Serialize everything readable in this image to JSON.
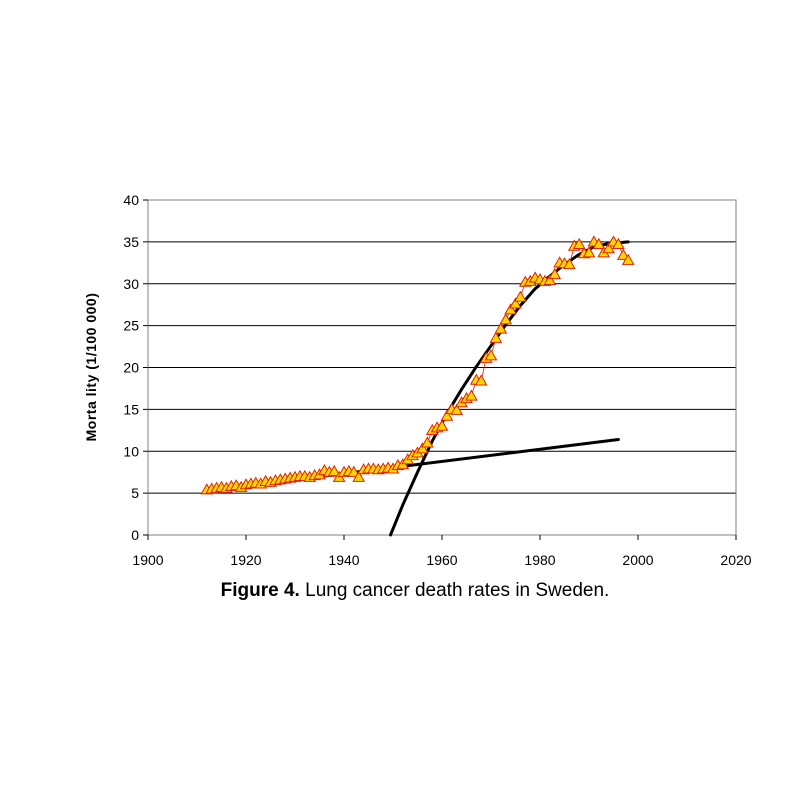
{
  "caption": {
    "prefix": "Figure 4.",
    "text": "Lung cancer death rates in Sweden."
  },
  "chart_data": {
    "type": "scatter",
    "ylabel": "Morta lity (1/100 000)",
    "xlabel": "",
    "xlim": [
      1900,
      2020
    ],
    "ylim": [
      0,
      40
    ],
    "x_ticks": [
      1900,
      1920,
      1940,
      1960,
      1980,
      2000,
      2020
    ],
    "y_ticks": [
      0,
      5,
      10,
      15,
      20,
      25,
      30,
      35,
      40
    ],
    "grid": "horizontal",
    "marker": "triangle",
    "colors": {
      "marker_fill": "#ffd700",
      "marker_edge": "#e02000",
      "connector": "#e02000",
      "fit_line": "#000000",
      "gridline": "#000000"
    },
    "series": [
      {
        "x": [
          1912,
          1913,
          1914,
          1915,
          1916,
          1917,
          1918,
          1919,
          1920,
          1921,
          1922,
          1923,
          1924,
          1925,
          1926,
          1927,
          1928,
          1929,
          1930,
          1931,
          1932,
          1933,
          1934,
          1935,
          1936,
          1937,
          1938,
          1939,
          1940,
          1941,
          1942,
          1943,
          1944,
          1945,
          1946,
          1947,
          1948,
          1949,
          1950,
          1951,
          1952,
          1953,
          1954,
          1955,
          1956,
          1957,
          1958,
          1959,
          1960,
          1961,
          1962,
          1963,
          1964,
          1965,
          1966,
          1967,
          1968,
          1969,
          1970,
          1971,
          1972,
          1973,
          1974,
          1975,
          1976,
          1977,
          1978,
          1979,
          1980,
          1981,
          1982,
          1983,
          1984,
          1985,
          1986,
          1987,
          1988,
          1989,
          1990,
          1991,
          1992,
          1993,
          1994,
          1995,
          1996,
          1997,
          1998
        ],
        "y": [
          5.4,
          5.5,
          5.6,
          5.7,
          5.6,
          5.8,
          5.9,
          5.7,
          6.0,
          6.1,
          6.2,
          6.1,
          6.4,
          6.3,
          6.5,
          6.6,
          6.7,
          6.8,
          6.9,
          7.0,
          7.0,
          6.9,
          7.1,
          7.2,
          7.7,
          7.5,
          7.6,
          6.9,
          7.5,
          7.6,
          7.5,
          6.9,
          7.8,
          7.9,
          7.9,
          7.8,
          7.9,
          8.0,
          7.9,
          8.3,
          8.4,
          9.0,
          9.5,
          9.8,
          10.3,
          11.0,
          12.5,
          12.8,
          13.0,
          14.2,
          15.0,
          14.9,
          15.8,
          16.3,
          16.6,
          18.5,
          18.4,
          21.1,
          21.4,
          23.5,
          24.6,
          25.7,
          26.9,
          27.6,
          28.4,
          30.2,
          30.3,
          30.7,
          30.5,
          30.3,
          30.4,
          31.1,
          32.5,
          32.4,
          32.3,
          34.5,
          34.7,
          33.6,
          33.7,
          35.0,
          34.7,
          33.7,
          34.2,
          35.0,
          34.7,
          33.4,
          32.8
        ]
      }
    ],
    "fits": [
      {
        "x": [
          1912,
          1996
        ],
        "y": [
          5.3,
          11.4
        ]
      },
      {
        "x": [
          1949.5,
          1952,
          1955,
          1958,
          1961,
          1964,
          1967,
          1970,
          1973,
          1976,
          1979,
          1982,
          1985,
          1988,
          1991,
          1994,
          1998
        ],
        "y": [
          0,
          3.6,
          7.5,
          11.2,
          14.5,
          17.4,
          20.1,
          22.6,
          25.1,
          27.4,
          29.4,
          30.9,
          32.3,
          33.5,
          34.4,
          34.8,
          35.0
        ]
      }
    ]
  }
}
